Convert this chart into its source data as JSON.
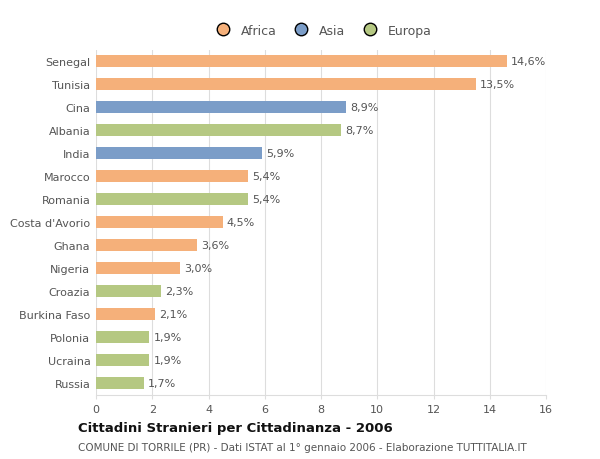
{
  "categories": [
    "Senegal",
    "Tunisia",
    "Cina",
    "Albania",
    "India",
    "Marocco",
    "Romania",
    "Costa d'Avorio",
    "Ghana",
    "Nigeria",
    "Croazia",
    "Burkina Faso",
    "Polonia",
    "Ucraina",
    "Russia"
  ],
  "values": [
    14.6,
    13.5,
    8.9,
    8.7,
    5.9,
    5.4,
    5.4,
    4.5,
    3.6,
    3.0,
    2.3,
    2.1,
    1.9,
    1.9,
    1.7
  ],
  "labels": [
    "14,6%",
    "13,5%",
    "8,9%",
    "8,7%",
    "5,9%",
    "5,4%",
    "5,4%",
    "4,5%",
    "3,6%",
    "3,0%",
    "2,3%",
    "2,1%",
    "1,9%",
    "1,9%",
    "1,7%"
  ],
  "regions": [
    "Africa",
    "Africa",
    "Asia",
    "Europa",
    "Asia",
    "Africa",
    "Europa",
    "Africa",
    "Africa",
    "Africa",
    "Europa",
    "Africa",
    "Europa",
    "Europa",
    "Europa"
  ],
  "colors": {
    "Africa": "#F5B07A",
    "Asia": "#7B9DC8",
    "Europa": "#B5C882"
  },
  "xlim": [
    0,
    16
  ],
  "xticks": [
    0,
    2,
    4,
    6,
    8,
    10,
    12,
    14,
    16
  ],
  "title_bold": "Cittadini Stranieri per Cittadinanza - 2006",
  "subtitle": "COMUNE DI TORRILE (PR) - Dati ISTAT al 1° gennaio 2006 - Elaborazione TUTTITALIA.IT",
  "bg_color": "#ffffff",
  "grid_color": "#dddddd",
  "bar_height": 0.55,
  "label_fontsize": 8.0,
  "tick_fontsize": 8.0,
  "title_fontsize": 9.5,
  "subtitle_fontsize": 7.5
}
